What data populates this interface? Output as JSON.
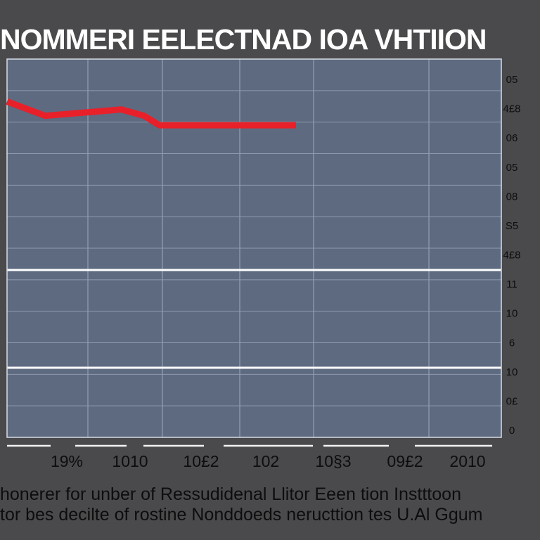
{
  "chart_data": {
    "type": "line",
    "title": "NOMMERI  EELECTNAD IOA VHTIION",
    "caption_lines": [
      "honerer for unber of Ressudidenal Llitor Eeen tion Instttoon",
      "tor bes decilte of rostine Nonddoeds neructtion  tes U.Al Ggum"
    ],
    "x_ticks": [
      "19%",
      "1010",
      "10£2",
      "102",
      "10§3",
      "09£2",
      "2010"
    ],
    "y_ticks": [
      "05",
      "4£8",
      "06",
      "05",
      "08",
      "S5",
      "4£8",
      "11",
      "10",
      "6",
      "10",
      "0£",
      "0"
    ],
    "series": [
      {
        "color": "#e8202a",
        "x": [
          0.0,
          0.5,
          1.0,
          1.5,
          1.8,
          2.0,
          2.3,
          2.8,
          3.3,
          3.8
        ],
        "y": [
          10.65,
          10.2,
          10.3,
          10.4,
          10.2,
          9.9,
          9.9,
          9.9,
          9.9,
          9.9
        ]
      }
    ],
    "xlim": [
      0,
      6.5
    ],
    "ylim": [
      0,
      12
    ],
    "grid": true,
    "colors": {
      "background": "#4a4a4d",
      "plot": "#5e6a80",
      "grid": "#8e9bb1",
      "band_line": "#ffffff",
      "line": "#e8202a",
      "text_dark": "#0d0d0d",
      "title": "#ffffff"
    }
  }
}
